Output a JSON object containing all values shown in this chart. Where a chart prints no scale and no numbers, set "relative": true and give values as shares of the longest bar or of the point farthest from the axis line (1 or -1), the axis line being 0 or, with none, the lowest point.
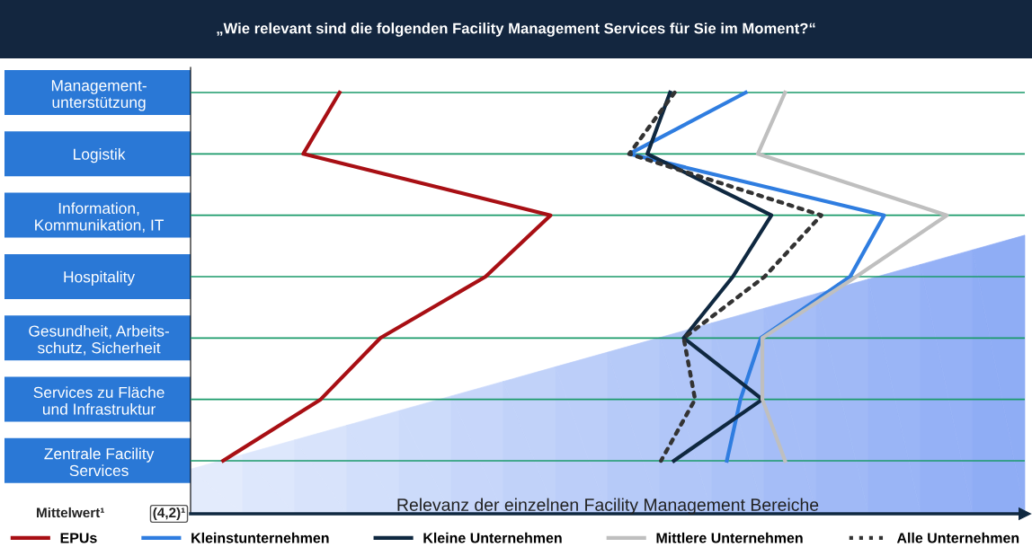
{
  "chart_data": {
    "type": "line",
    "orientation": "horizontal",
    "relative": true,
    "title": "„Wie relevant sind die folgenden Facility Management Services für Sie im Moment?“",
    "xlabel": "Relevanz der einzelnen Facility Management Bereiche",
    "categories": [
      "Management-\nunterstützung",
      "Logistik",
      "Information,\nKommunikation, IT",
      "Hospitality",
      "Gesundheit, Arbeits-\nschutz, Sicherheit",
      "Services zu Fläche\nund Infrastruktur",
      "Zentrale Facility\nServices"
    ],
    "series": [
      {
        "name": "EPUs",
        "color": "#a80f14",
        "values": [
          0.197,
          0.149,
          0.476,
          0.39,
          0.251,
          0.172,
          0.043
        ]
      },
      {
        "name": "Kleinstunternehmen",
        "color": "#2f7de0",
        "values": [
          0.734,
          0.58,
          0.917,
          0.872,
          0.754,
          0.727,
          0.709
        ]
      },
      {
        "name": "Kleine Unternehmen",
        "color": "#0f2840",
        "values": [
          0.634,
          0.604,
          0.768,
          0.717,
          0.652,
          0.756,
          0.639
        ]
      },
      {
        "name": "Mittlere Unternehmen",
        "color": "#bfbfbf",
        "values": [
          0.786,
          0.75,
          1.0,
          0.88,
          0.756,
          0.756,
          0.786
        ]
      },
      {
        "name": "Alle Unternehmen",
        "color": "#333333",
        "line_style": "dotted",
        "values": [
          0.64,
          0.58,
          0.834,
          0.759,
          0.652,
          0.667,
          0.622
        ]
      }
    ],
    "annotations": [
      "Mittelwert¹",
      "(4,2)¹"
    ],
    "grid": "y",
    "legend": "bottom",
    "marker": "none"
  }
}
